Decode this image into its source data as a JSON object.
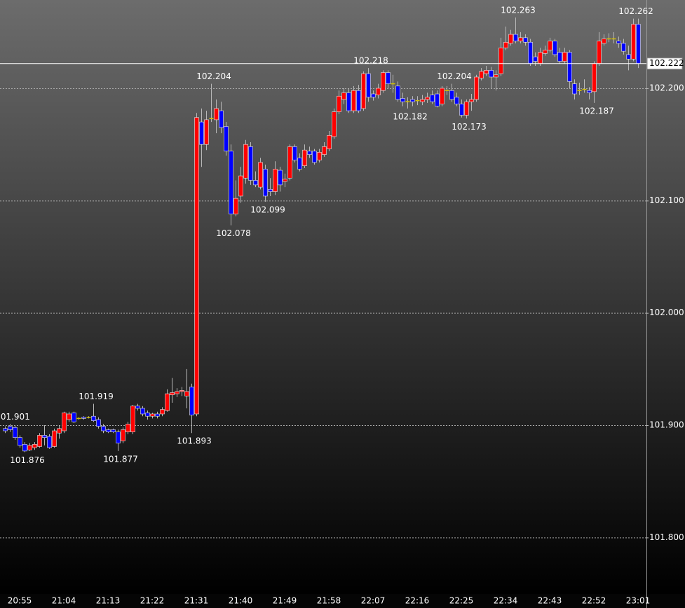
{
  "chart_data": {
    "type": "candlestick",
    "ylim": [
      101.7497,
      102.2786
    ],
    "yticks": [
      {
        "value": 101.8,
        "label": "101.800"
      },
      {
        "value": 101.9,
        "label": "101.900"
      },
      {
        "value": 102.0,
        "label": "102.000"
      },
      {
        "value": 102.1,
        "label": "102.100"
      },
      {
        "value": 102.2,
        "label": "102.200"
      }
    ],
    "grid": true,
    "colors": {
      "up": "#ff0000",
      "down": "#0000ff",
      "doji": "#d4c000",
      "wick": "#b8b8b8"
    },
    "last_price": 102.222,
    "categories": [
      null,
      null,
      null,
      "20:55",
      null,
      null,
      null,
      null,
      null,
      null,
      null,
      null,
      "21:04",
      null,
      null,
      null,
      null,
      null,
      null,
      null,
      null,
      "21:13",
      null,
      null,
      null,
      null,
      null,
      null,
      null,
      null,
      "21:22",
      null,
      null,
      null,
      null,
      null,
      null,
      null,
      null,
      "21:31",
      null,
      null,
      null,
      null,
      null,
      null,
      null,
      null,
      "21:40",
      null,
      null,
      null,
      null,
      null,
      null,
      null,
      null,
      "21:49",
      null,
      null,
      null,
      null,
      null,
      null,
      null,
      null,
      "21:58",
      null,
      null,
      null,
      null,
      null,
      null,
      null,
      null,
      "22:07",
      null,
      null,
      null,
      null,
      null,
      null,
      null,
      null,
      "22:16",
      null,
      null,
      null,
      null,
      null,
      null,
      null,
      null,
      "22:25",
      null,
      null,
      null,
      null,
      null,
      null,
      null,
      null,
      "22:34",
      null,
      null,
      null,
      null,
      null,
      null,
      null,
      null,
      "22:43",
      null,
      null,
      null,
      null,
      null,
      null,
      null,
      null,
      "22:52",
      null,
      null,
      null,
      null,
      null,
      null,
      null,
      null,
      "23:01"
    ],
    "values": [
      [
        101.897,
        101.899,
        101.893,
        101.895
      ],
      [
        101.899,
        101.901,
        101.894,
        101.896
      ],
      [
        101.898,
        101.9,
        101.887,
        101.889
      ],
      [
        101.889,
        101.891,
        101.88,
        101.882
      ],
      [
        101.883,
        101.885,
        101.876,
        101.877
      ],
      [
        101.878,
        101.884,
        101.877,
        101.882
      ],
      [
        101.88,
        101.885,
        101.878,
        101.883
      ],
      [
        101.881,
        101.893,
        101.88,
        101.891
      ],
      [
        101.891,
        101.9,
        101.882,
        101.889
      ],
      [
        101.89,
        101.892,
        101.879,
        101.88
      ],
      [
        101.881,
        101.897,
        101.88,
        101.895
      ],
      [
        101.893,
        101.9,
        101.888,
        101.897
      ],
      [
        101.895,
        101.912,
        101.893,
        101.911
      ],
      [
        101.905,
        101.912,
        101.903,
        101.91
      ],
      [
        101.911,
        101.912,
        101.902,
        101.903
      ],
      [
        101.906,
        101.907,
        101.905,
        101.906
      ],
      [
        101.907,
        101.908,
        101.905,
        101.906
      ],
      [
        101.907,
        101.908,
        101.906,
        101.907
      ],
      [
        101.908,
        101.919,
        101.903,
        101.904
      ],
      [
        101.905,
        101.907,
        101.897,
        101.899
      ],
      [
        101.899,
        101.901,
        101.893,
        101.895
      ],
      [
        101.896,
        101.897,
        101.893,
        101.894
      ],
      [
        101.896,
        101.897,
        101.893,
        101.894
      ],
      [
        101.894,
        101.896,
        101.877,
        101.884
      ],
      [
        101.886,
        101.898,
        101.884,
        101.896
      ],
      [
        101.894,
        101.903,
        101.892,
        101.901
      ],
      [
        101.894,
        101.918,
        101.892,
        101.917
      ],
      [
        101.917,
        101.919,
        101.913,
        101.915
      ],
      [
        101.915,
        101.917,
        101.908,
        101.91
      ],
      [
        101.911,
        101.913,
        101.905,
        101.908
      ],
      [
        101.908,
        101.911,
        101.906,
        101.91
      ],
      [
        101.91,
        101.912,
        101.906,
        101.908
      ],
      [
        101.91,
        101.916,
        101.908,
        101.914
      ],
      [
        101.913,
        101.932,
        101.912,
        101.928
      ],
      [
        101.927,
        101.942,
        101.92,
        101.929
      ],
      [
        101.928,
        101.933,
        101.925,
        101.93
      ],
      [
        101.93,
        101.934,
        101.926,
        101.931
      ],
      [
        101.926,
        101.95,
        101.915,
        101.93
      ],
      [
        101.934,
        101.937,
        101.893,
        101.909
      ],
      [
        101.91,
        102.178,
        101.908,
        102.174
      ],
      [
        102.17,
        102.182,
        102.13,
        102.15
      ],
      [
        102.15,
        102.18,
        102.145,
        102.172
      ],
      [
        102.173,
        102.204,
        102.17,
        102.173
      ],
      [
        102.172,
        102.19,
        102.16,
        102.182
      ],
      [
        102.18,
        102.188,
        102.16,
        102.165
      ],
      [
        102.166,
        102.17,
        102.14,
        102.144
      ],
      [
        102.144,
        102.15,
        102.078,
        102.088
      ],
      [
        102.088,
        102.118,
        102.086,
        102.102
      ],
      [
        102.104,
        102.13,
        102.098,
        102.122
      ],
      [
        102.12,
        102.154,
        102.115,
        102.15
      ],
      [
        102.148,
        102.152,
        102.114,
        102.118
      ],
      [
        102.118,
        102.126,
        102.112,
        102.114
      ],
      [
        102.112,
        102.138,
        102.11,
        102.134
      ],
      [
        102.128,
        102.132,
        102.099,
        102.104
      ],
      [
        102.11,
        102.12,
        102.104,
        102.108
      ],
      [
        102.108,
        102.135,
        102.105,
        102.128
      ],
      [
        102.127,
        102.13,
        102.108,
        102.114
      ],
      [
        102.117,
        102.124,
        102.112,
        102.119
      ],
      [
        102.12,
        102.15,
        102.118,
        102.148
      ],
      [
        102.148,
        102.15,
        102.134,
        102.136
      ],
      [
        102.138,
        102.142,
        102.126,
        102.128
      ],
      [
        102.131,
        102.15,
        102.129,
        102.145
      ],
      [
        102.144,
        102.148,
        102.138,
        102.141
      ],
      [
        102.144,
        102.146,
        102.132,
        102.134
      ],
      [
        102.136,
        102.146,
        102.134,
        102.143
      ],
      [
        102.141,
        102.152,
        102.139,
        102.148
      ],
      [
        102.146,
        102.162,
        102.144,
        102.158
      ],
      [
        102.157,
        102.182,
        102.155,
        102.179
      ],
      [
        102.179,
        102.198,
        102.177,
        102.193
      ],
      [
        102.19,
        102.2,
        102.186,
        102.196
      ],
      [
        102.196,
        102.2,
        102.178,
        102.18
      ],
      [
        102.18,
        102.202,
        102.178,
        102.198
      ],
      [
        102.198,
        102.203,
        102.178,
        102.18
      ],
      [
        102.182,
        102.215,
        102.18,
        102.213
      ],
      [
        102.213,
        102.218,
        102.188,
        102.192
      ],
      [
        102.195,
        102.198,
        102.189,
        102.192
      ],
      [
        102.194,
        102.204,
        102.191,
        102.2
      ],
      [
        102.198,
        102.216,
        102.196,
        102.214
      ],
      [
        102.214,
        102.216,
        102.2,
        102.204
      ],
      [
        102.204,
        102.212,
        102.196,
        102.204
      ],
      [
        102.202,
        102.206,
        102.188,
        102.19
      ],
      [
        102.191,
        102.196,
        102.184,
        102.188
      ],
      [
        102.188,
        102.192,
        102.182,
        102.188
      ],
      [
        102.19,
        102.193,
        102.184,
        102.188
      ],
      [
        102.189,
        102.193,
        102.185,
        102.189
      ],
      [
        102.188,
        102.194,
        102.185,
        102.19
      ],
      [
        102.19,
        102.196,
        102.187,
        102.192
      ],
      [
        102.194,
        102.198,
        102.186,
        102.188
      ],
      [
        102.195,
        102.198,
        102.183,
        102.184
      ],
      [
        102.186,
        102.202,
        102.184,
        102.2
      ],
      [
        102.198,
        102.202,
        102.194,
        102.198
      ],
      [
        102.198,
        102.204,
        102.188,
        102.19
      ],
      [
        102.192,
        102.196,
        102.184,
        102.186
      ],
      [
        102.186,
        102.19,
        102.174,
        102.176
      ],
      [
        102.176,
        102.19,
        102.173,
        102.188
      ],
      [
        102.188,
        102.195,
        102.18,
        102.19
      ],
      [
        102.19,
        102.212,
        102.188,
        102.21
      ],
      [
        102.209,
        102.218,
        102.207,
        102.215
      ],
      [
        102.213,
        102.22,
        102.211,
        102.216
      ],
      [
        102.216,
        102.219,
        102.2,
        102.21
      ],
      [
        102.21,
        102.216,
        102.198,
        102.212
      ],
      [
        102.213,
        102.245,
        102.211,
        102.236
      ],
      [
        102.236,
        102.255,
        102.234,
        102.241
      ],
      [
        102.24,
        102.252,
        102.238,
        102.248
      ],
      [
        102.248,
        102.263,
        102.24,
        102.242
      ],
      [
        102.242,
        102.25,
        102.24,
        102.245
      ],
      [
        102.245,
        102.248,
        102.238,
        102.241
      ],
      [
        102.241,
        102.244,
        102.22,
        102.222
      ],
      [
        102.228,
        102.232,
        102.22,
        102.224
      ],
      [
        102.222,
        102.236,
        102.22,
        102.232
      ],
      [
        102.231,
        102.238,
        102.229,
        102.234
      ],
      [
        102.234,
        102.245,
        102.232,
        102.242
      ],
      [
        102.242,
        102.244,
        102.228,
        102.23
      ],
      [
        102.232,
        102.236,
        102.222,
        102.224
      ],
      [
        102.224,
        102.236,
        102.222,
        102.232
      ],
      [
        102.232,
        102.234,
        102.2,
        102.206
      ],
      [
        102.204,
        102.208,
        102.19,
        102.195
      ],
      [
        102.198,
        102.205,
        102.194,
        102.198
      ],
      [
        102.199,
        102.208,
        102.196,
        102.199
      ],
      [
        102.198,
        102.201,
        102.19,
        102.196
      ],
      [
        102.197,
        102.224,
        102.187,
        102.222
      ],
      [
        102.222,
        102.25,
        102.22,
        102.242
      ],
      [
        102.24,
        102.248,
        102.238,
        102.244
      ],
      [
        102.244,
        102.249,
        102.241,
        102.244
      ],
      [
        102.244,
        102.25,
        102.24,
        102.244
      ],
      [
        102.242,
        102.246,
        102.236,
        102.24
      ],
      [
        102.24,
        102.244,
        102.23,
        102.233
      ],
      [
        102.23,
        102.238,
        102.216,
        102.226
      ],
      [
        102.226,
        102.262,
        102.224,
        102.257
      ],
      [
        102.257,
        102.262,
        102.218,
        102.222
      ]
    ],
    "annotations": [
      {
        "value": 101.901,
        "label": "101.901"
      },
      {
        "value": 101.876,
        "label": "101.876"
      },
      {
        "value": 101.919,
        "label": "101.919"
      },
      {
        "value": 101.877,
        "label": "101.877"
      },
      {
        "value": 101.893,
        "label": "101.893"
      },
      {
        "value": 102.204,
        "label": "102.204"
      },
      {
        "value": 102.078,
        "label": "102.078"
      },
      {
        "value": 102.099,
        "label": "102.099"
      },
      {
        "value": 102.218,
        "label": "102.218"
      },
      {
        "value": 102.182,
        "label": "102.182"
      },
      {
        "value": 102.204,
        "label": "102.204"
      },
      {
        "value": 102.173,
        "label": "102.173"
      },
      {
        "value": 102.263,
        "label": "102.263"
      },
      {
        "value": 102.187,
        "label": "102.187"
      },
      {
        "value": 102.262,
        "label": "102.262"
      }
    ]
  }
}
